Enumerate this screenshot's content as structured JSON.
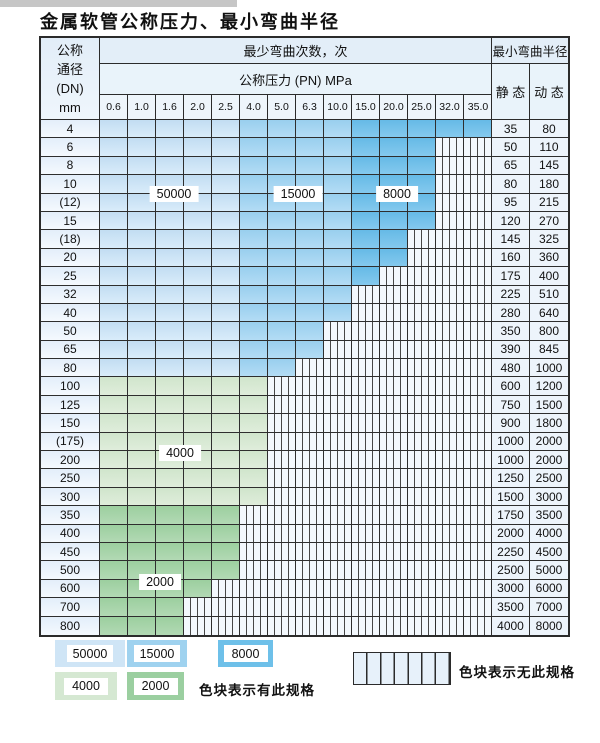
{
  "page": {
    "title": "金属软管公称压力、最小弯曲半径"
  },
  "table": {
    "header": {
      "dn_lines": [
        "公称",
        "通径",
        "(DN)",
        "mm"
      ],
      "bend_times": "最少弯曲次数，次",
      "pressure": "公称压力 (PN) MPa",
      "min_radius": "最小弯曲半径",
      "static": "静 态",
      "dynamic": "动 态",
      "pressure_values": [
        "0.6",
        "1.0",
        "1.6",
        "2.0",
        "2.5",
        "4.0",
        "5.0",
        "6.3",
        "10.0",
        "15.0",
        "20.0",
        "25.0",
        "32.0",
        "35.0"
      ]
    },
    "zone_values": {
      "blue_light": "50000",
      "blue_mid": "15000",
      "blue_dark": "8000",
      "green_light": "4000",
      "green_dark": "2000"
    },
    "zone_labels": [
      "50000",
      "15000",
      "8000",
      "4000",
      "2000"
    ],
    "blue_bands": {
      "light_cols": [
        1,
        5
      ],
      "mid_cols": [
        6,
        9
      ],
      "dark_cols": [
        10,
        14
      ]
    },
    "rows": [
      {
        "dn": "4",
        "band": "blue",
        "colored": 14,
        "static": "35",
        "dynamic": "80"
      },
      {
        "dn": "6",
        "band": "blue",
        "colored": 12,
        "static": "50",
        "dynamic": "110"
      },
      {
        "dn": "8",
        "band": "blue",
        "colored": 12,
        "static": "65",
        "dynamic": "145"
      },
      {
        "dn": "10",
        "band": "blue",
        "colored": 12,
        "static": "80",
        "dynamic": "180"
      },
      {
        "dn": "(12)",
        "band": "blue",
        "colored": 12,
        "static": "95",
        "dynamic": "215"
      },
      {
        "dn": "15",
        "band": "blue",
        "colored": 12,
        "static": "120",
        "dynamic": "270"
      },
      {
        "dn": "(18)",
        "band": "blue",
        "colored": 11,
        "static": "145",
        "dynamic": "325"
      },
      {
        "dn": "20",
        "band": "blue",
        "colored": 11,
        "static": "160",
        "dynamic": "360"
      },
      {
        "dn": "25",
        "band": "blue",
        "colored": 10,
        "static": "175",
        "dynamic": "400"
      },
      {
        "dn": "32",
        "band": "blue",
        "colored": 9,
        "static": "225",
        "dynamic": "510"
      },
      {
        "dn": "40",
        "band": "blue",
        "colored": 9,
        "static": "280",
        "dynamic": "640"
      },
      {
        "dn": "50",
        "band": "blue",
        "colored": 8,
        "static": "350",
        "dynamic": "800"
      },
      {
        "dn": "65",
        "band": "blue",
        "colored": 8,
        "static": "390",
        "dynamic": "845"
      },
      {
        "dn": "80",
        "band": "blue",
        "colored": 7,
        "static": "480",
        "dynamic": "1000"
      },
      {
        "dn": "100",
        "band": "green-light",
        "colored": 6,
        "static": "600",
        "dynamic": "1200"
      },
      {
        "dn": "125",
        "band": "green-light",
        "colored": 6,
        "static": "750",
        "dynamic": "1500"
      },
      {
        "dn": "150",
        "band": "green-light",
        "colored": 6,
        "static": "900",
        "dynamic": "1800"
      },
      {
        "dn": "(175)",
        "band": "green-light",
        "colored": 6,
        "static": "1000",
        "dynamic": "2000"
      },
      {
        "dn": "200",
        "band": "green-light",
        "colored": 6,
        "static": "1000",
        "dynamic": "2000"
      },
      {
        "dn": "250",
        "band": "green-light",
        "colored": 6,
        "static": "1250",
        "dynamic": "2500"
      },
      {
        "dn": "300",
        "band": "green-light",
        "colored": 6,
        "static": "1500",
        "dynamic": "3000"
      },
      {
        "dn": "350",
        "band": "green-dark",
        "colored": 5,
        "static": "1750",
        "dynamic": "3500"
      },
      {
        "dn": "400",
        "band": "green-dark",
        "colored": 5,
        "static": "2000",
        "dynamic": "4000"
      },
      {
        "dn": "450",
        "band": "green-dark",
        "colored": 5,
        "static": "2250",
        "dynamic": "4500"
      },
      {
        "dn": "500",
        "band": "green-dark",
        "colored": 5,
        "static": "2500",
        "dynamic": "5000"
      },
      {
        "dn": "600",
        "band": "green-dark",
        "colored": 4,
        "static": "3000",
        "dynamic": "6000"
      },
      {
        "dn": "700",
        "band": "green-dark",
        "colored": 3,
        "static": "3500",
        "dynamic": "7000"
      },
      {
        "dn": "800",
        "band": "green-dark",
        "colored": 3,
        "static": "4000",
        "dynamic": "8000"
      }
    ]
  },
  "legend": {
    "items": [
      "50000",
      "15000",
      "8000",
      "4000",
      "2000"
    ],
    "has_text": "色块表示有此规格",
    "none_text": "色块表示无此规格"
  },
  "colors": {
    "blue_50000": "#cfe5f6",
    "blue_15000": "#9fd2ef",
    "blue_8000": "#6ec0e9",
    "green_4000": "#d5e8d2",
    "green_2000": "#9bcfa0",
    "stripe_bg": "#f3f8fd",
    "border": "#2b2b2b"
  }
}
